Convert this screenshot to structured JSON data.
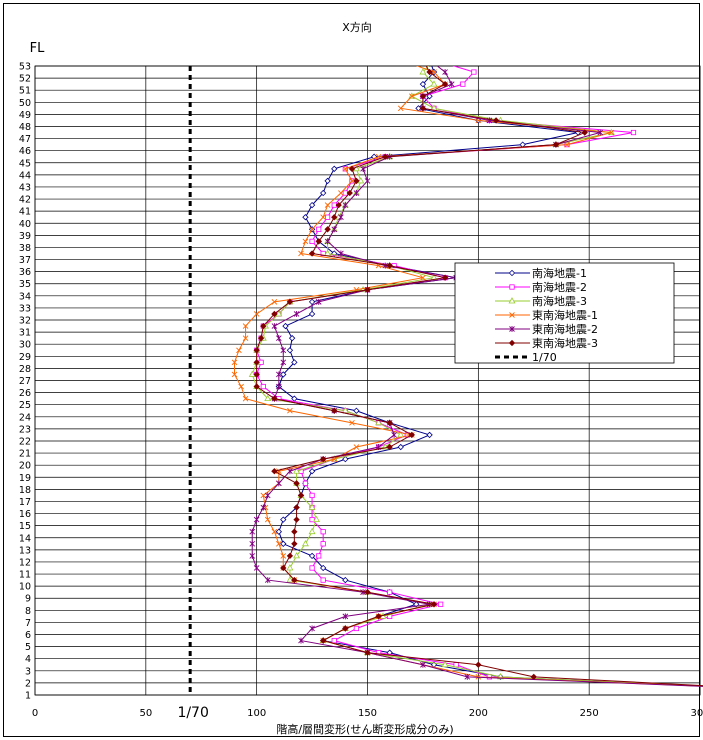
{
  "chart_data": {
    "type": "line",
    "title": "X方向",
    "ylabel": "FL",
    "xlabel": "階高/層間変形(せん断変形成分のみ)",
    "xlim": [
      0,
      300
    ],
    "ylim": [
      1,
      53
    ],
    "x_ticks": [
      0,
      50,
      100,
      150,
      200,
      250,
      300
    ],
    "y_ticks": [
      "1",
      "2",
      "3",
      "4",
      "5",
      "6",
      "7",
      "8",
      "9",
      "10",
      "11",
      "12",
      "13",
      "14",
      "15",
      "16",
      "17",
      "18",
      "19",
      "20",
      "21",
      "22",
      "23",
      "24",
      "25",
      "26",
      "27",
      "28",
      "29",
      "30",
      "31",
      "32",
      "33",
      "34",
      "35",
      "36",
      "37",
      "38",
      "39",
      "40",
      "41",
      "42",
      "43",
      "44",
      "45",
      "46",
      "47",
      "48",
      "49",
      "50",
      "51",
      "52",
      "53"
    ],
    "grid": {
      "x": true,
      "y": true
    },
    "legend": {
      "position": "right"
    },
    "reference_line": {
      "name": "1/70",
      "x": 70,
      "label": "1/70",
      "color": "#000000"
    },
    "series": [
      {
        "name": "南海地震-1",
        "color": "#00008B",
        "marker": "diamond-open",
        "x": [
          330,
          210,
          180,
          160,
          130,
          140,
          155,
          172,
          160,
          140,
          130,
          125,
          112,
          110,
          112,
          118,
          120,
          122,
          125,
          140,
          165,
          178,
          160,
          145,
          117,
          110,
          112,
          117,
          115,
          116,
          113,
          125,
          125,
          150,
          190,
          160,
          135,
          128,
          125,
          122,
          125,
          130,
          132,
          135,
          153,
          220,
          245,
          200,
          173,
          178,
          175,
          180,
          178,
          255,
          330
        ]
      },
      {
        "name": "南海地震-2",
        "color": "#FF00FF",
        "marker": "square-open",
        "x": [
          330,
          205,
          190,
          155,
          135,
          145,
          160,
          183,
          160,
          130,
          125,
          128,
          130,
          130,
          125,
          125,
          125,
          122,
          120,
          135,
          155,
          168,
          155,
          140,
          110,
          103,
          100,
          102,
          100,
          102,
          103,
          110,
          115,
          150,
          185,
          162,
          130,
          125,
          128,
          132,
          135,
          140,
          143,
          140,
          158,
          240,
          270,
          205,
          180,
          175,
          193,
          198,
          180,
          255,
          330
        ]
      },
      {
        "name": "南海地震-3",
        "color": "#9ACD32",
        "marker": "triangle-open",
        "x": [
          330,
          210,
          185,
          150,
          130,
          140,
          157,
          178,
          150,
          115,
          115,
          118,
          122,
          125,
          127,
          125,
          120,
          118,
          118,
          135,
          158,
          165,
          155,
          140,
          105,
          100,
          98,
          100,
          100,
          103,
          104,
          110,
          115,
          148,
          180,
          160,
          132,
          132,
          135,
          137,
          140,
          145,
          147,
          145,
          160,
          235,
          260,
          210,
          180,
          170,
          180,
          175,
          180,
          255,
          330
        ]
      },
      {
        "name": "東南海地震-1",
        "color": "#FF6600",
        "marker": "x",
        "x": [
          330,
          200,
          175,
          150,
          130,
          140,
          155,
          180,
          148,
          117,
          112,
          112,
          110,
          108,
          105,
          104,
          103,
          110,
          110,
          135,
          145,
          170,
          143,
          115,
          95,
          93,
          90,
          90,
          92,
          95,
          95,
          100,
          108,
          145,
          175,
          155,
          120,
          122,
          125,
          130,
          132,
          138,
          143,
          140,
          155,
          240,
          260,
          200,
          165,
          170,
          185,
          180,
          165,
          270,
          330
        ]
      },
      {
        "name": "東南海地震-2",
        "color": "#800080",
        "marker": "asterisk",
        "x": [
          330,
          195,
          175,
          150,
          120,
          125,
          140,
          178,
          148,
          105,
          100,
          98,
          98,
          98,
          100,
          103,
          105,
          110,
          115,
          130,
          155,
          162,
          160,
          135,
          108,
          110,
          110,
          112,
          112,
          110,
          108,
          118,
          128,
          150,
          190,
          158,
          138,
          132,
          135,
          138,
          140,
          145,
          150,
          148,
          160,
          235,
          255,
          205,
          175,
          175,
          188,
          185,
          178,
          250,
          330
        ]
      },
      {
        "name": "東南海地震-3",
        "color": "#800000",
        "marker": "diamond-filled",
        "x": [
          330,
          225,
          200,
          150,
          130,
          140,
          155,
          180,
          150,
          117,
          112,
          115,
          117,
          117,
          118,
          118,
          120,
          118,
          108,
          130,
          160,
          170,
          160,
          135,
          108,
          100,
          100,
          100,
          100,
          102,
          103,
          108,
          115,
          150,
          185,
          160,
          125,
          128,
          132,
          135,
          137,
          142,
          145,
          143,
          158,
          235,
          248,
          208,
          175,
          175,
          185,
          178,
          175,
          255,
          330
        ]
      }
    ]
  }
}
